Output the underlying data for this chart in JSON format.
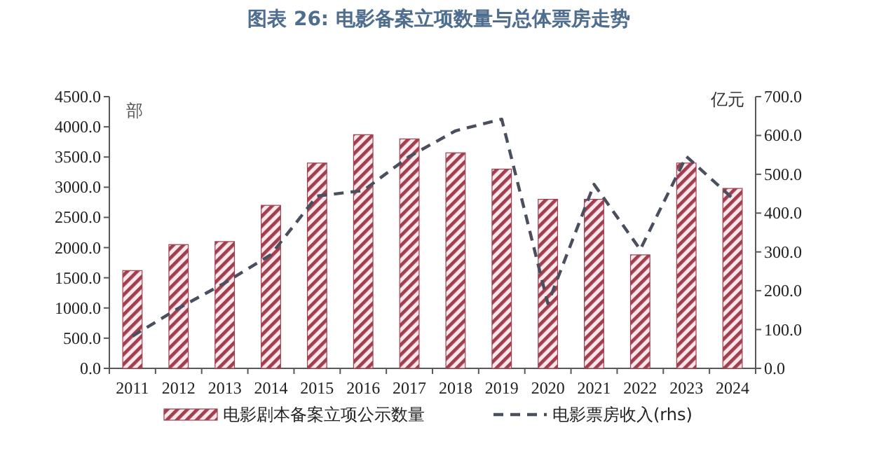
{
  "chart_data": {
    "type": "bar",
    "title": "图表 26: 电影备案立项数量与总体票房走势",
    "ylabel": "部",
    "y2label": "亿元",
    "categories": [
      "2011",
      "2012",
      "2013",
      "2014",
      "2015",
      "2016",
      "2017",
      "2018",
      "2019",
      "2020",
      "2021",
      "2022",
      "2023",
      "2024"
    ],
    "series": [
      {
        "name": "电影剧本备案立项公示数量",
        "color": "#a0404f",
        "values": [
          1620,
          2050,
          2100,
          2700,
          3400,
          3870,
          3800,
          3570,
          3300,
          2800,
          2800,
          1880,
          3400,
          2980
        ]
      },
      {
        "name": "电影票房收入(rhs)",
        "type": "line",
        "axis": "y2",
        "line_style": "dashed",
        "color": "#4a4f5e",
        "values": [
          83,
          155,
          220,
          293,
          444,
          458,
          546,
          612,
          642,
          167,
          474,
          306,
          546,
          438
        ]
      }
    ],
    "ylim": [
      0,
      4500
    ],
    "yticks": [
      {
        "value": 0,
        "label": "0.0"
      },
      {
        "value": 500,
        "label": "500.0"
      },
      {
        "value": 1000,
        "label": "1000.0"
      },
      {
        "value": 1500,
        "label": "1500.0"
      },
      {
        "value": 2000,
        "label": "2000.0"
      },
      {
        "value": 2500,
        "label": "2500.0"
      },
      {
        "value": 3000,
        "label": "3000.0"
      },
      {
        "value": 3500,
        "label": "3500.0"
      },
      {
        "value": 4000,
        "label": "4000.0"
      },
      {
        "value": 4500,
        "label": "4500.0"
      }
    ],
    "y2lim": [
      0,
      700
    ],
    "y2ticks": [
      {
        "value": 0,
        "label": "0.0"
      },
      {
        "value": 100,
        "label": "100.0"
      },
      {
        "value": 200,
        "label": "200.0"
      },
      {
        "value": 300,
        "label": "300.0"
      },
      {
        "value": 400,
        "label": "400.0"
      },
      {
        "value": 500,
        "label": "500.0"
      },
      {
        "value": 600,
        "label": "600.0"
      },
      {
        "value": 700,
        "label": "700.0"
      }
    ],
    "legend": "bottom"
  }
}
